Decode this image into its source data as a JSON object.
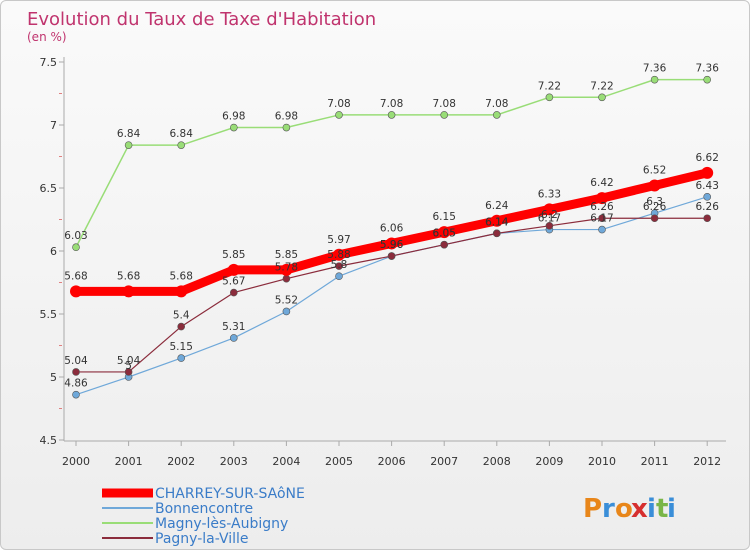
{
  "chart_data": {
    "type": "line",
    "title": "Evolution du Taux de Taxe d'Habitation",
    "subtitle": "(en %)",
    "xlabel": "",
    "ylabel": "",
    "ylim": [
      4.5,
      7.5
    ],
    "yticks": [
      "4.5",
      "5",
      "5.5",
      "6",
      "6.5",
      "7",
      "7.5"
    ],
    "ytick_values": [
      4.5,
      5,
      5.5,
      6,
      6.5,
      7,
      7.5
    ],
    "categories": [
      "2000",
      "2001",
      "2002",
      "2003",
      "2004",
      "2005",
      "2006",
      "2007",
      "2008",
      "2009",
      "2010",
      "2011",
      "2012"
    ],
    "grid": false,
    "legend_position": "bottom-left",
    "series": [
      {
        "name": "CHARREY-SUR-SAôNE",
        "color": "#ff0000",
        "values": [
          5.68,
          5.68,
          5.68,
          5.85,
          5.85,
          5.97,
          6.06,
          6.15,
          6.24,
          6.33,
          6.42,
          6.52,
          6.62
        ]
      },
      {
        "name": "Bonnencontre",
        "color": "#6fa8d9",
        "values": [
          4.86,
          5.0,
          5.15,
          5.31,
          5.52,
          5.8,
          5.96,
          6.05,
          6.14,
          6.17,
          6.17,
          6.3,
          6.43
        ]
      },
      {
        "name": "Magny-lès-Aubigny",
        "color": "#99dd77",
        "values": [
          6.03,
          6.84,
          6.84,
          6.98,
          6.98,
          7.08,
          7.08,
          7.08,
          7.08,
          7.22,
          7.22,
          7.36,
          7.36
        ]
      },
      {
        "name": "Pagny-la-Ville",
        "color": "#8b2c3c",
        "values": [
          5.04,
          5.04,
          5.4,
          5.67,
          5.78,
          5.88,
          5.96,
          6.05,
          6.14,
          6.2,
          6.26,
          6.26,
          6.26
        ]
      }
    ]
  },
  "watermark": {
    "text": "Proxiti",
    "letters": [
      "P",
      "r",
      "o",
      "x",
      "i",
      "t",
      "i"
    ],
    "colors": [
      "#e8861a",
      "#3a8ed8",
      "#e8861a",
      "#d62f2f",
      "#3a8ed8",
      "#7ab648",
      "#3a8ed8"
    ]
  }
}
